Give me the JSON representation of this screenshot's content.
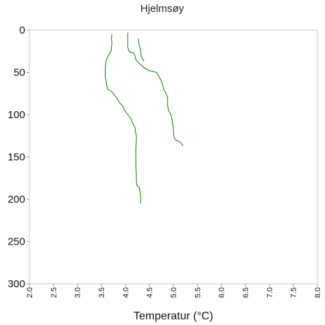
{
  "chart_data": {
    "type": "line",
    "title": "Hjelmsøy",
    "xlabel": "Temperatur (°C)",
    "ylabel": "",
    "xlim": [
      2.0,
      8.0
    ],
    "ylim": [
      300,
      0
    ],
    "y_inverted": true,
    "grid": false,
    "legend": "none",
    "xticks": [
      "2.0",
      "2.5",
      "3.0",
      "3.5",
      "4.0",
      "4.5",
      "5.0",
      "5.5",
      "6.0",
      "6.5",
      "7.0",
      "7.5",
      "8.0"
    ],
    "yticks": [
      "0",
      "50",
      "100",
      "150",
      "200",
      "250",
      "300"
    ],
    "color": "#008000",
    "series": [
      {
        "x": [
          3.72,
          3.71,
          3.72,
          3.71,
          3.7,
          3.67,
          3.63,
          3.6,
          3.59,
          3.58,
          3.58,
          3.6,
          3.61,
          3.63,
          3.7,
          3.75,
          3.82,
          3.88,
          3.95,
          3.98,
          4.05,
          4.12,
          4.15,
          4.2,
          4.21,
          4.23,
          4.23,
          4.22,
          4.22,
          4.22,
          4.23,
          4.23,
          4.23,
          4.24,
          4.24,
          4.29,
          4.3,
          4.32,
          4.32
        ],
        "y": [
          5,
          10,
          15,
          22,
          25,
          28,
          32,
          36,
          40,
          46,
          56,
          60,
          65,
          70,
          72,
          75,
          80,
          86,
          90,
          95,
          100,
          105,
          110,
          115,
          120,
          125,
          130,
          140,
          150,
          160,
          170,
          175,
          180,
          182,
          184,
          186,
          190,
          195,
          205
        ]
      },
      {
        "x": [
          4.05,
          4.05,
          4.05,
          4.07,
          4.1,
          4.17,
          4.2,
          4.22,
          4.3,
          4.4,
          4.5,
          4.65,
          4.7,
          4.75,
          4.8,
          4.85,
          4.88,
          4.88,
          4.9,
          4.95,
          4.97,
          4.98,
          5.0,
          5.01,
          5.02,
          5.05,
          5.1,
          5.15,
          5.2
        ],
        "y": [
          3,
          15,
          20,
          24,
          26,
          27,
          30,
          35,
          40,
          45,
          48,
          50,
          55,
          60,
          70,
          75,
          80,
          90,
          95,
          100,
          105,
          110,
          115,
          125,
          128,
          130,
          131,
          133,
          137
        ]
      },
      {
        "x": [
          4.27,
          4.28,
          4.3,
          4.32,
          4.33,
          4.35,
          4.37,
          4.39
        ],
        "y": [
          10,
          15,
          20,
          25,
          30,
          33,
          35,
          37
        ]
      }
    ]
  }
}
